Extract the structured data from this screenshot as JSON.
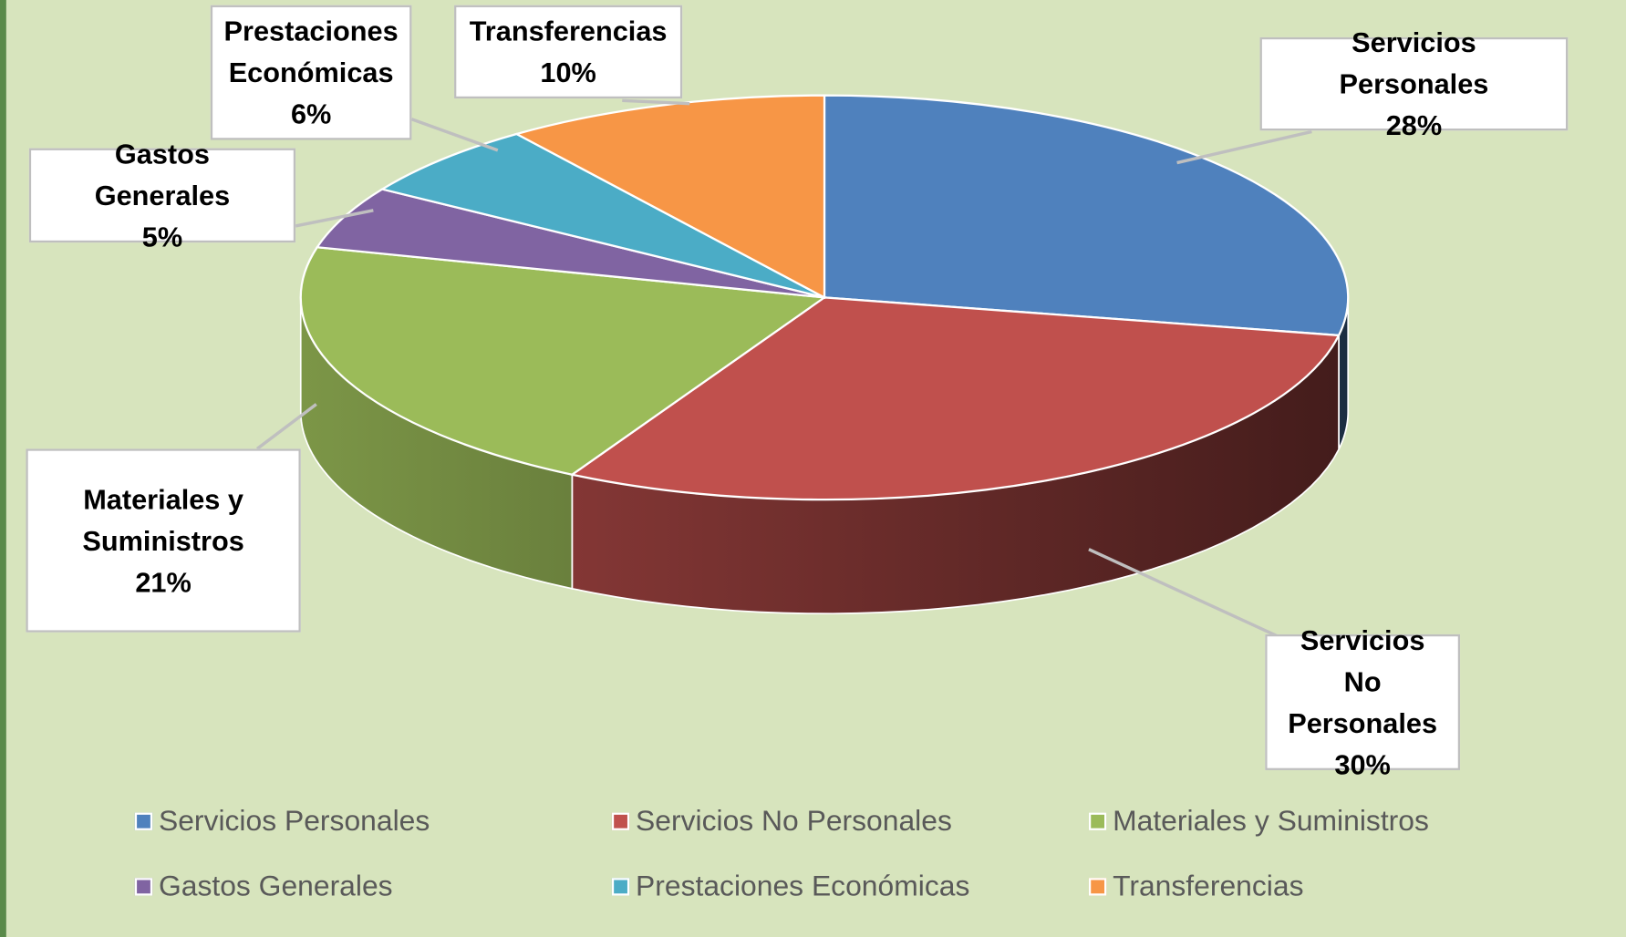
{
  "chart_data": {
    "type": "pie",
    "categories": [
      "Servicios Personales",
      "Servicios No Personales",
      "Materiales y Suministros",
      "Gastos Generales",
      "Prestaciones Económicas",
      "Transferencias"
    ],
    "values": [
      28,
      30,
      21,
      5,
      6,
      10
    ],
    "value_labels": [
      "28%",
      "30%",
      "21%",
      "5%",
      "6%",
      "10%"
    ],
    "colors": [
      "#4f81bd",
      "#c0504d",
      "#9bbb59",
      "#8064a2",
      "#4bacc6",
      "#f79646"
    ],
    "legend": "bottom"
  }
}
